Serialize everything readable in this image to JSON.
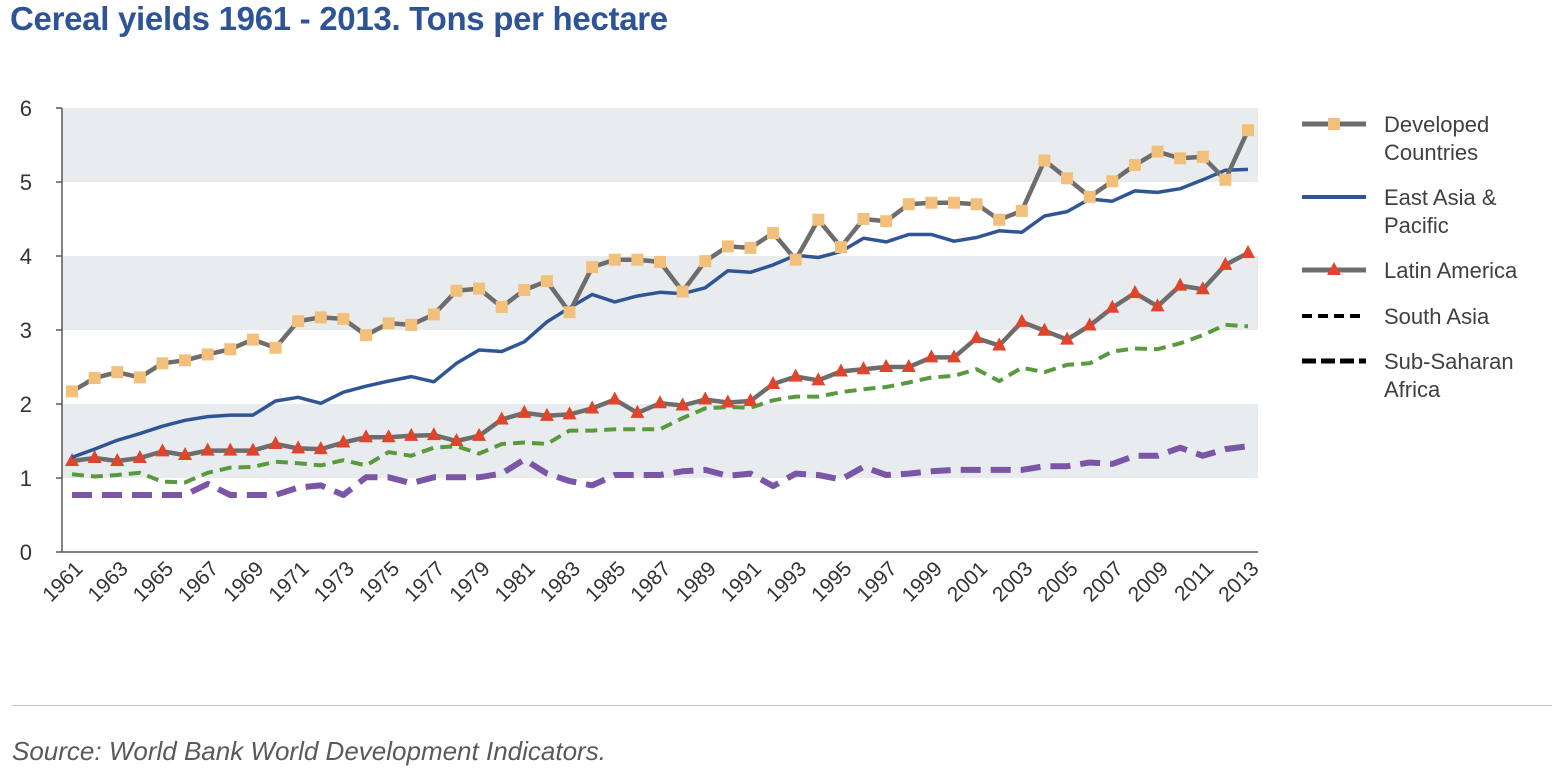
{
  "title": "Cereal yields 1961 - 2013. Tons per hectare",
  "source": "Source: World Bank World Development Indicators.",
  "colors": {
    "band": "#e8ecef",
    "axis": "#595959",
    "developed_line": "#6d6d6d",
    "developed_marker": "#f2c07a",
    "east_asia": "#2f5597",
    "latin_line": "#6d6d6d",
    "latin_marker": "#e0442a",
    "south_asia": "#5a9a3e",
    "sub_saharan": "#7b55a6"
  },
  "chart_data": {
    "type": "line",
    "title": "Cereal yields 1961 - 2013. Tons per hectare",
    "xlabel": "",
    "ylabel": "",
    "ylim": [
      0,
      6
    ],
    "yticks": [
      "0",
      "1",
      "2",
      "3",
      "4",
      "5",
      "6"
    ],
    "xticks": [
      "1961",
      "1963",
      "1965",
      "1967",
      "1969",
      "1971",
      "1973",
      "1975",
      "1977",
      "1979",
      "1981",
      "1983",
      "1985",
      "1987",
      "1989",
      "1991",
      "1993",
      "1995",
      "1997",
      "1999",
      "2001",
      "2003",
      "2005",
      "2007",
      "2009",
      "2011",
      "2013"
    ],
    "grid": "alternating horizontal bands",
    "legend_position": "right",
    "x": [
      1961,
      1962,
      1963,
      1964,
      1965,
      1966,
      1967,
      1968,
      1969,
      1970,
      1971,
      1972,
      1973,
      1974,
      1975,
      1976,
      1977,
      1978,
      1979,
      1980,
      1981,
      1982,
      1983,
      1984,
      1985,
      1986,
      1987,
      1988,
      1989,
      1990,
      1991,
      1992,
      1993,
      1994,
      1995,
      1996,
      1997,
      1998,
      1999,
      2000,
      2001,
      2002,
      2003,
      2004,
      2005,
      2006,
      2007,
      2008,
      2009,
      2010,
      2011,
      2012,
      2013
    ],
    "series": [
      {
        "name": "Developed Countries",
        "line": "solid",
        "marker": "square",
        "values": [
          2.17,
          2.35,
          2.43,
          2.36,
          2.55,
          2.59,
          2.67,
          2.74,
          2.87,
          2.76,
          3.12,
          3.17,
          3.15,
          2.93,
          3.09,
          3.07,
          3.21,
          3.53,
          3.56,
          3.31,
          3.54,
          3.66,
          3.24,
          3.85,
          3.95,
          3.95,
          3.92,
          3.52,
          3.93,
          4.13,
          4.11,
          4.31,
          3.95,
          4.49,
          4.12,
          4.5,
          4.47,
          4.7,
          4.72,
          4.72,
          4.7,
          4.49,
          4.61,
          5.29,
          5.05,
          4.8,
          5.01,
          5.23,
          5.41,
          5.32,
          5.34,
          5.03,
          5.7
        ]
      },
      {
        "name": "East Asia & Pacific",
        "line": "solid",
        "marker": "none",
        "values": [
          1.28,
          1.39,
          1.51,
          1.6,
          1.7,
          1.78,
          1.83,
          1.85,
          1.85,
          2.04,
          2.09,
          2.01,
          2.16,
          2.24,
          2.31,
          2.37,
          2.3,
          2.55,
          2.73,
          2.71,
          2.84,
          3.11,
          3.3,
          3.48,
          3.38,
          3.46,
          3.51,
          3.49,
          3.57,
          3.8,
          3.78,
          3.88,
          4.01,
          3.98,
          4.06,
          4.24,
          4.19,
          4.29,
          4.29,
          4.2,
          4.25,
          4.34,
          4.32,
          4.54,
          4.6,
          4.77,
          4.74,
          4.88,
          4.86,
          4.91,
          5.03,
          5.16,
          5.17
        ]
      },
      {
        "name": "Latin America",
        "line": "solid",
        "marker": "triangle",
        "values": [
          1.23,
          1.27,
          1.23,
          1.27,
          1.36,
          1.31,
          1.37,
          1.37,
          1.37,
          1.46,
          1.4,
          1.39,
          1.48,
          1.55,
          1.55,
          1.57,
          1.58,
          1.5,
          1.57,
          1.79,
          1.88,
          1.84,
          1.86,
          1.94,
          2.06,
          1.88,
          2.01,
          1.98,
          2.06,
          2.02,
          2.04,
          2.27,
          2.37,
          2.32,
          2.44,
          2.47,
          2.5,
          2.5,
          2.63,
          2.63,
          2.89,
          2.79,
          3.11,
          2.99,
          2.87,
          3.06,
          3.3,
          3.5,
          3.32,
          3.6,
          3.55,
          3.88,
          4.04
        ]
      },
      {
        "name": "South Asia",
        "line": "dashed",
        "marker": "none",
        "values": [
          1.05,
          1.02,
          1.04,
          1.07,
          0.95,
          0.94,
          1.07,
          1.14,
          1.15,
          1.22,
          1.2,
          1.17,
          1.24,
          1.17,
          1.35,
          1.3,
          1.41,
          1.43,
          1.33,
          1.46,
          1.48,
          1.46,
          1.64,
          1.64,
          1.66,
          1.66,
          1.66,
          1.81,
          1.94,
          1.96,
          1.95,
          2.05,
          2.1,
          2.1,
          2.16,
          2.2,
          2.23,
          2.29,
          2.36,
          2.38,
          2.47,
          2.31,
          2.49,
          2.43,
          2.53,
          2.55,
          2.71,
          2.75,
          2.74,
          2.82,
          2.93,
          3.07,
          3.05
        ]
      },
      {
        "name": "Sub-Saharan Africa",
        "line": "dashed",
        "marker": "none",
        "values": [
          0.77,
          0.77,
          0.77,
          0.77,
          0.77,
          0.77,
          0.92,
          0.77,
          0.77,
          0.77,
          0.87,
          0.9,
          0.77,
          1.01,
          1.01,
          0.93,
          1.01,
          1.01,
          1.01,
          1.06,
          1.25,
          1.06,
          0.96,
          0.9,
          1.04,
          1.04,
          1.04,
          1.09,
          1.11,
          1.03,
          1.06,
          0.89,
          1.06,
          1.04,
          0.98,
          1.15,
          1.04,
          1.06,
          1.09,
          1.11,
          1.11,
          1.11,
          1.11,
          1.16,
          1.16,
          1.21,
          1.19,
          1.3,
          1.3,
          1.41,
          1.3,
          1.39,
          1.43
        ]
      }
    ]
  }
}
